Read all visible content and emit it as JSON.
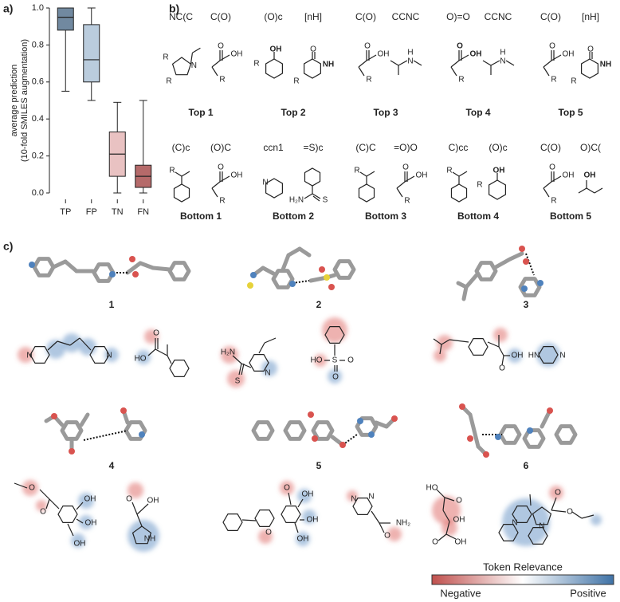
{
  "panel_labels": [
    "a)",
    "b)",
    "c)"
  ],
  "chart_data": {
    "type": "box",
    "ylabel_lines": [
      "average prediction",
      "(10-fold SMILES augmentation)"
    ],
    "categories": [
      "TP",
      "FP",
      "TN",
      "FN"
    ],
    "boxes": [
      {
        "whislo": 0.55,
        "q1": 0.88,
        "med": 0.95,
        "q3": 1.0,
        "whishi": 1.0,
        "color": "#4d6b88"
      },
      {
        "whislo": 0.5,
        "q1": 0.6,
        "med": 0.72,
        "q3": 0.91,
        "whishi": 1.0,
        "color": "#a9bfd4"
      },
      {
        "whislo": 0.0,
        "q1": 0.09,
        "med": 0.21,
        "q3": 0.33,
        "whishi": 0.49,
        "color": "#e3b3b3"
      },
      {
        "whislo": 0.0,
        "q1": 0.03,
        "med": 0.09,
        "q3": 0.15,
        "whishi": 0.5,
        "color": "#a34545"
      }
    ],
    "ylim": [
      0,
      1.0
    ],
    "yticks": [
      {
        "value": 0,
        "label": "0.0"
      },
      0.2,
      0.4,
      0.6,
      0.8,
      {
        "value": 1.0,
        "label": "1.0"
      }
    ]
  },
  "top": [
    {
      "tokens": [
        "NC(C",
        "C(O)"
      ],
      "atoms": [
        [
          "R",
          "N",
          "R"
        ],
        [
          "O",
          "OH",
          "R"
        ]
      ],
      "label": "Top 1"
    },
    {
      "tokens": [
        "(O)c",
        "[nH]"
      ],
      "atoms": [
        [
          "OH",
          "R"
        ],
        [
          "O",
          "NH",
          "R"
        ]
      ],
      "label": "Top 2"
    },
    {
      "tokens": [
        "C(O)",
        "CCNC"
      ],
      "atoms": [
        [
          "O",
          "OH",
          "R"
        ],
        [
          "H",
          "N"
        ]
      ],
      "label": "Top 3"
    },
    {
      "tokens": [
        "O)=O",
        "CCNC"
      ],
      "atoms": [
        [
          "O",
          "OH",
          "R"
        ],
        [
          "H",
          "N"
        ]
      ],
      "label": "Top 4"
    },
    {
      "tokens": [
        "C(O)",
        "[nH]"
      ],
      "atoms": [
        [
          "O",
          "OH",
          "R"
        ],
        [
          "O",
          "NH",
          "R"
        ]
      ],
      "label": "Top 5"
    }
  ],
  "bottom": [
    {
      "tokens": [
        "(C)c",
        "(O)C"
      ],
      "atoms": [
        [
          "R"
        ],
        [
          "O",
          "OH",
          "R"
        ]
      ],
      "label": "Bottom 1"
    },
    {
      "tokens": [
        "ccn1",
        "=S)c"
      ],
      "atoms": [
        [
          "N"
        ],
        [
          "H₂N",
          "S"
        ]
      ],
      "label": "Bottom 2"
    },
    {
      "tokens": [
        "(C)C",
        "=O)O"
      ],
      "atoms": [
        [
          "R"
        ],
        [
          "O",
          "OH",
          "R"
        ]
      ],
      "label": "Bottom 3"
    },
    {
      "tokens": [
        "C)cc",
        "(O)c"
      ],
      "atoms": [
        [
          "R"
        ],
        [
          "OH",
          "R"
        ]
      ],
      "label": "Bottom 4"
    },
    {
      "tokens": [
        "C(O)",
        "O)C("
      ],
      "atoms": [
        [
          "O",
          "OH",
          "R"
        ],
        [
          "OH"
        ]
      ],
      "label": "Bottom 5"
    }
  ],
  "complexes": [
    {
      "label": "1",
      "atoms": [
        "N",
        "N",
        "O",
        "HO"
      ]
    },
    {
      "label": "2",
      "atoms": [
        "H₂N",
        "S",
        "N",
        "HO",
        "S",
        "O",
        "O"
      ]
    },
    {
      "label": "3",
      "atoms": [
        "O",
        "OH",
        "HN",
        "N"
      ]
    },
    {
      "label": "4",
      "atoms": [
        "O",
        "O",
        "OH",
        "OH",
        "OH",
        "O",
        "OH",
        "NH"
      ]
    },
    {
      "label": "5",
      "atoms": [
        "O",
        "O",
        "OH",
        "OH",
        "OH",
        "N",
        "N",
        "O",
        "NH₂"
      ]
    },
    {
      "label": "6",
      "atoms": [
        "HO",
        "O",
        "OH",
        "O",
        "OH",
        "N",
        "N",
        "O",
        "O"
      ]
    }
  ],
  "legend": {
    "title": "Token Relevance",
    "low": "Negative",
    "high": "Positive"
  }
}
